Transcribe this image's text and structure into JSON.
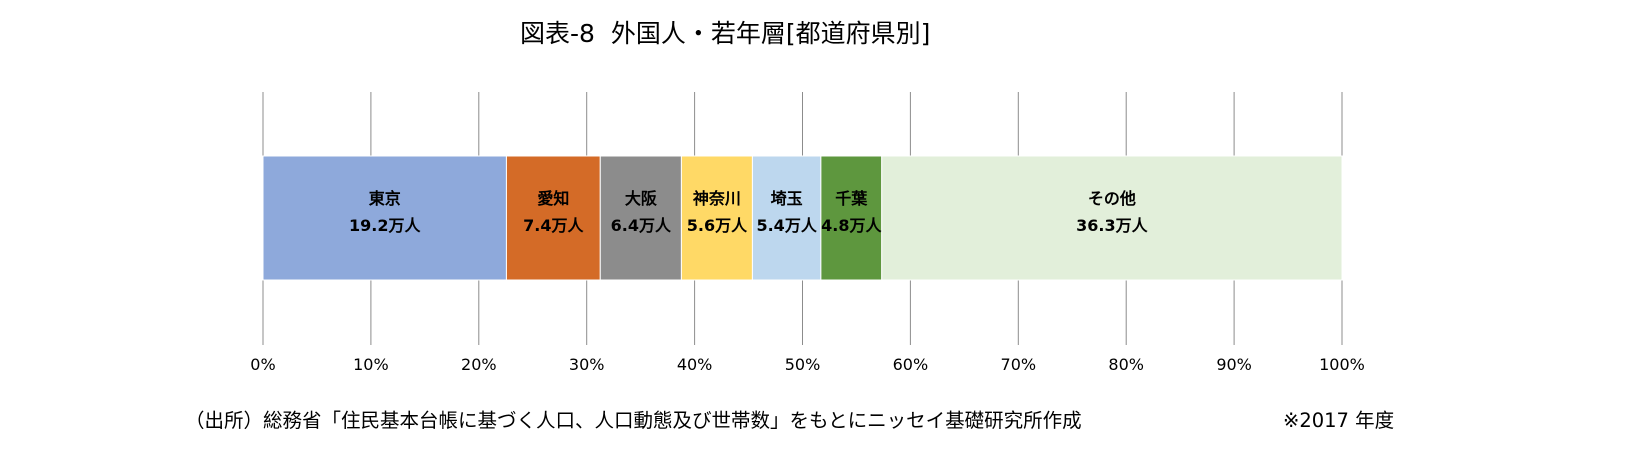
{
  "title": "図表-8  外国人・若年層[都道府県別]",
  "source": "（出所）総務省「住民基本台帳に基づく人口、人口動態及び世帯数」をもとにニッセイ基礎研究所作成",
  "note": "※2017 年度",
  "chart_data": {
    "type": "bar",
    "orientation": "horizontal",
    "stacked": true,
    "title": "図表-8  外国人・若年層[都道府県別]",
    "xlim": [
      0,
      100
    ],
    "grid": true,
    "x_tick_labels": [
      "0%",
      "10%",
      "20%",
      "30%",
      "40%",
      "50%",
      "60%",
      "70%",
      "80%",
      "90%",
      "100%"
    ],
    "series": [
      {
        "name": "東京",
        "value_label": "19.2万人",
        "value": 19.2,
        "color": "#8EA9DB"
      },
      {
        "name": "愛知",
        "value_label": "7.4万人",
        "value": 7.4,
        "color": "#D46B27"
      },
      {
        "name": "大阪",
        "value_label": "6.4万人",
        "value": 6.4,
        "color": "#8C8C8C"
      },
      {
        "name": "神奈川",
        "value_label": "5.6万人",
        "value": 5.6,
        "color": "#FFD966"
      },
      {
        "name": "埼玉",
        "value_label": "5.4万人",
        "value": 5.4,
        "color": "#BDD7EE"
      },
      {
        "name": "千葉",
        "value_label": "4.8万人",
        "value": 4.8,
        "color": "#5E973E"
      },
      {
        "name": "その他",
        "value_label": "36.3万人",
        "value": 36.3,
        "color": "#E2EFDA"
      }
    ]
  }
}
